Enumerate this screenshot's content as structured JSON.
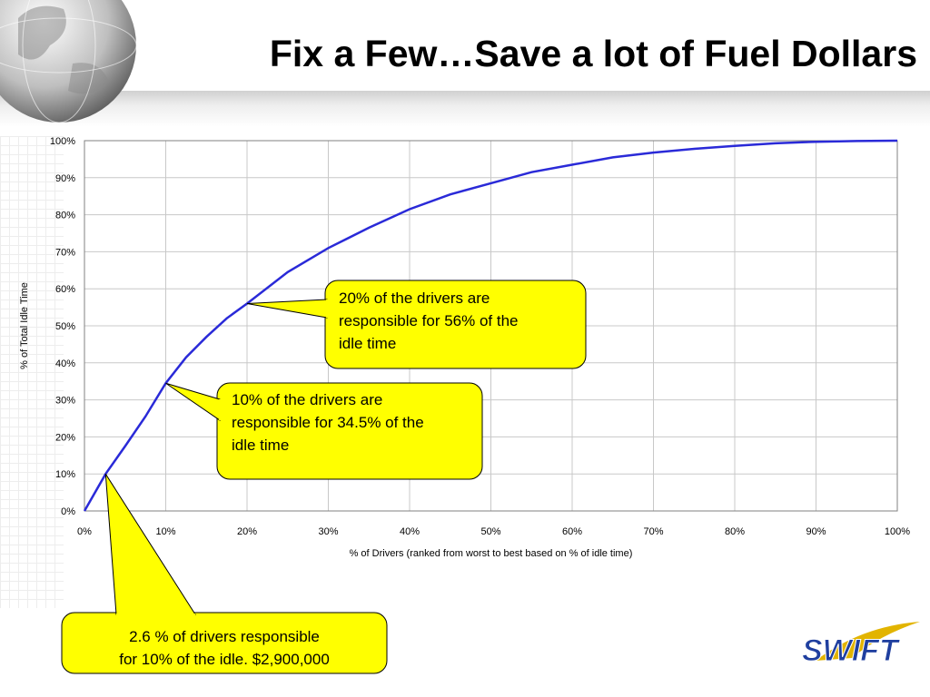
{
  "slide": {
    "title": "Fix a Few…Save a lot of Fuel Dollars"
  },
  "chart_data": {
    "type": "line",
    "title": "",
    "xlabel": "% of Drivers (ranked from worst to best based on % of idle time)",
    "ylabel": "% of Total Idle Time",
    "xlim": [
      0,
      100
    ],
    "ylim": [
      0,
      100
    ],
    "x_ticks": [
      "0%",
      "10%",
      "20%",
      "30%",
      "40%",
      "50%",
      "60%",
      "70%",
      "80%",
      "90%",
      "100%"
    ],
    "y_ticks": [
      "0%",
      "10%",
      "20%",
      "30%",
      "40%",
      "50%",
      "60%",
      "70%",
      "80%",
      "90%",
      "100%"
    ],
    "grid": true,
    "series": [
      {
        "color": "#2a2ad8",
        "x": [
          0,
          2.6,
          5,
          7.5,
          10,
          12.5,
          15,
          17.5,
          20,
          25,
          30,
          35,
          40,
          45,
          50,
          55,
          60,
          65,
          70,
          75,
          80,
          85,
          90,
          95,
          100
        ],
        "y": [
          0,
          10,
          17.5,
          25.5,
          34.5,
          41.5,
          47,
          52,
          56,
          64.5,
          71,
          76.5,
          81.5,
          85.5,
          88.5,
          91.5,
          93.5,
          95.5,
          96.8,
          97.8,
          98.6,
          99.3,
          99.7,
          99.9,
          100
        ]
      }
    ],
    "annotations": [
      {
        "id": "a20",
        "lines": [
          "20% of the drivers are",
          "responsible for 56% of the",
          "idle time"
        ],
        "point": [
          20,
          56
        ]
      },
      {
        "id": "a10",
        "lines": [
          "10% of the drivers are",
          "responsible for 34.5% of the",
          "idle time"
        ],
        "point": [
          10,
          34.5
        ]
      },
      {
        "id": "a26",
        "lines": [
          "2.6 % of  drivers responsible",
          "for 10% of the idle.  $2,900,000"
        ],
        "point": [
          2.6,
          10
        ]
      }
    ]
  },
  "colors": {
    "line": "#2a2ad8",
    "callout_fill": "#ffff00",
    "logo_blue": "#1f3f9f",
    "logo_gold": "#e2b400"
  },
  "logo": {
    "text": "SWIFT"
  }
}
